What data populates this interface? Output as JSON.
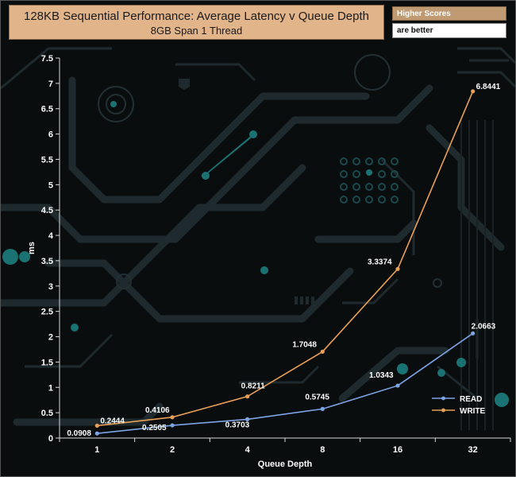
{
  "header": {
    "title": "128KB Sequential Performance: Average Latency v Queue Depth",
    "subtitle": "8GB Span 1 Thread"
  },
  "note": {
    "line1": "Higher Scores",
    "line2": "are better"
  },
  "colors": {
    "read": "#7da4e6",
    "write": "#e8a057",
    "title_bg": "#e2b48a",
    "background": "#0a0d0e",
    "circuit": "#1e2a2d",
    "circuit_accent": "#1a7272"
  },
  "chart_data": {
    "type": "line",
    "title": "128KB Sequential Performance: Average Latency v Queue Depth",
    "subtitle": "8GB Span 1 Thread",
    "xlabel": "Queue Depth",
    "ylabel": "ms",
    "categories": [
      "1",
      "2",
      "4",
      "8",
      "16",
      "32"
    ],
    "ylim": [
      0,
      7.5
    ],
    "yticks": [
      "0",
      "0.5",
      "1",
      "1.5",
      "2",
      "2.5",
      "3",
      "3.5",
      "4",
      "4.5",
      "5",
      "5.5",
      "6",
      "6.5",
      "7",
      "7.5"
    ],
    "grid": false,
    "legend_position": "bottom-right",
    "series": [
      {
        "name": "READ",
        "values": [
          0.0908,
          0.2505,
          0.3703,
          0.5745,
          1.0343,
          2.0663
        ],
        "labels": [
          "0.0908",
          "0.2505",
          "0.3703",
          "0.5745",
          "1.0343",
          "2.0663"
        ]
      },
      {
        "name": "WRITE",
        "values": [
          0.2444,
          0.4106,
          0.8211,
          1.7048,
          3.3374,
          6.8441
        ],
        "labels": [
          "0.2444",
          "0.4106",
          "0.8211",
          "1.7048",
          "3.3374",
          "6.8441"
        ]
      }
    ]
  }
}
